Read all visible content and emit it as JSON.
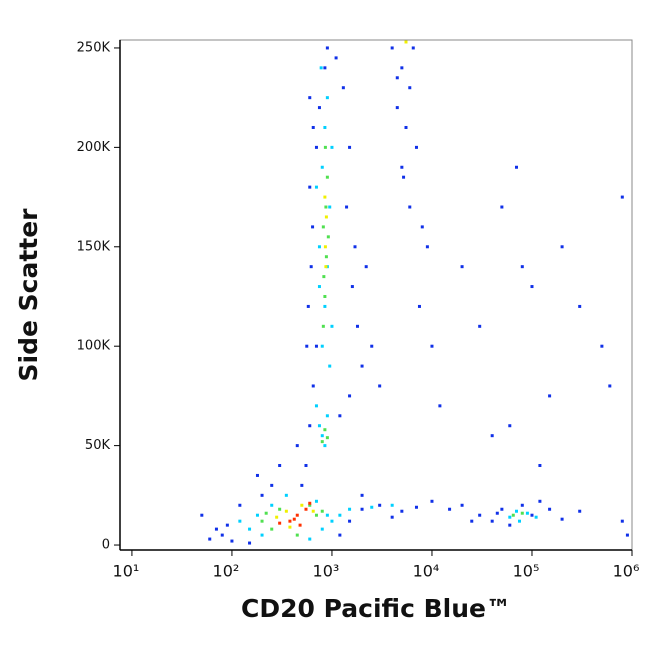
{
  "chart_data": {
    "type": "scatter",
    "xlabel": "CD20 Pacific Blue™",
    "ylabel": "Side Scatter",
    "xscale": "log",
    "xlim": [
      7.6,
      1000000
    ],
    "ylim": [
      -2500,
      254000
    ],
    "xticks": [
      {
        "value": 10,
        "label": "10¹"
      },
      {
        "value": 100,
        "label": "10²"
      },
      {
        "value": 1000,
        "label": "10³"
      },
      {
        "value": 10000,
        "label": "10⁴"
      },
      {
        "value": 100000,
        "label": "10⁵"
      },
      {
        "value": 1000000,
        "label": "10⁶"
      }
    ],
    "yticks": [
      {
        "value": 0,
        "label": "0"
      },
      {
        "value": 50000,
        "label": "50K"
      },
      {
        "value": 100000,
        "label": "100K"
      },
      {
        "value": 150000,
        "label": "150K"
      },
      {
        "value": 200000,
        "label": "200K"
      },
      {
        "value": 250000,
        "label": "250K"
      }
    ],
    "series": [
      {
        "color": "#1030e8",
        "x": [
          550,
          600,
          650,
          700,
          580,
          620,
          640,
          600,
          700,
          750,
          850,
          1300,
          1500,
          1400,
          1600,
          1800,
          2000,
          1500,
          1200,
          450,
          500,
          900,
          1100,
          650,
          1700,
          2500,
          3000,
          2200,
          560,
          600,
          4000,
          5000,
          6000,
          4500,
          5500,
          7000,
          5000,
          6000,
          8000,
          9000,
          4500,
          6500,
          5200,
          7500,
          10000,
          12000,
          50,
          80,
          100,
          150,
          200,
          250,
          120,
          90,
          1200,
          1500,
          2000,
          70,
          60,
          180,
          300,
          2000,
          3000,
          5000,
          7000,
          10000,
          15000,
          20000,
          25000,
          30000,
          4000,
          40000,
          50000,
          60000,
          80000,
          100000,
          120000,
          150000,
          200000,
          300000,
          45000,
          70000,
          50000,
          80000,
          100000,
          150000,
          500000,
          800000,
          600000,
          40000,
          300000,
          30000,
          120000,
          60000,
          20000,
          200000,
          800000,
          900000
        ],
        "values": [
          40000,
          60000,
          80000,
          100000,
          120000,
          140000,
          160000,
          180000,
          200000,
          220000,
          240000,
          230000,
          200000,
          170000,
          130000,
          110000,
          90000,
          75000,
          65000,
          50000,
          30000,
          250000,
          245000,
          210000,
          150000,
          100000,
          80000,
          140000,
          100000,
          225000,
          250000,
          240000,
          230000,
          220000,
          210000,
          200000,
          190000,
          170000,
          160000,
          150000,
          235000,
          250000,
          185000,
          120000,
          100000,
          70000,
          15000,
          5000,
          2000,
          1000,
          25000,
          30000,
          20000,
          10000,
          5000,
          12000,
          25000,
          8000,
          3000,
          35000,
          40000,
          18000,
          20000,
          17000,
          19000,
          22000,
          18000,
          20000,
          12000,
          15000,
          14000,
          12000,
          18000,
          10000,
          20000,
          15000,
          22000,
          18000,
          13000,
          17000,
          16000,
          190000,
          170000,
          140000,
          130000,
          75000,
          100000,
          175000,
          80000,
          55000,
          120000,
          110000,
          40000,
          60000,
          140000,
          150000,
          12000,
          5000
        ]
      },
      {
        "color": "#00d0ff",
        "x": [
          750,
          800,
          850,
          900,
          700,
          800,
          850,
          900,
          750,
          950,
          800,
          850,
          900,
          750,
          1000,
          700,
          1000,
          950,
          780,
          150,
          180,
          200,
          250,
          700,
          800,
          900,
          1000,
          120,
          350,
          600,
          1200,
          1500,
          2500,
          4000,
          60000,
          70000,
          90000,
          110000,
          75000
        ],
        "values": [
          60000,
          55000,
          50000,
          65000,
          70000,
          100000,
          120000,
          140000,
          150000,
          170000,
          190000,
          210000,
          225000,
          130000,
          110000,
          180000,
          200000,
          90000,
          240000,
          8000,
          15000,
          5000,
          20000,
          22000,
          8000,
          15000,
          12000,
          12000,
          25000,
          3000,
          15000,
          18000,
          19000,
          20000,
          14000,
          17000,
          16000,
          14000,
          12000
        ]
      },
      {
        "color": "#50e050",
        "x": [
          800,
          850,
          900,
          820,
          850,
          880,
          820,
          900,
          860,
          870,
          830,
          920,
          200,
          250,
          300,
          600,
          700,
          450,
          800,
          220,
          65000,
          80000
        ],
        "values": [
          52000,
          58000,
          54000,
          110000,
          125000,
          145000,
          160000,
          185000,
          200000,
          170000,
          135000,
          155000,
          12000,
          8000,
          18000,
          20000,
          15000,
          5000,
          17000,
          16000,
          15000,
          16000
        ]
      },
      {
        "color": "#f0f000",
        "x": [
          860,
          880,
          850,
          870,
          280,
          350,
          500,
          650,
          380,
          5500
        ],
        "values": [
          150000,
          165000,
          175000,
          140000,
          14000,
          17000,
          20000,
          17000,
          9000,
          253000
        ]
      },
      {
        "color": "#ff3000",
        "x": [
          380,
          450,
          550,
          600,
          300,
          480,
          420
        ],
        "values": [
          12000,
          15000,
          18000,
          21000,
          11000,
          10000,
          13000
        ]
      }
    ]
  }
}
